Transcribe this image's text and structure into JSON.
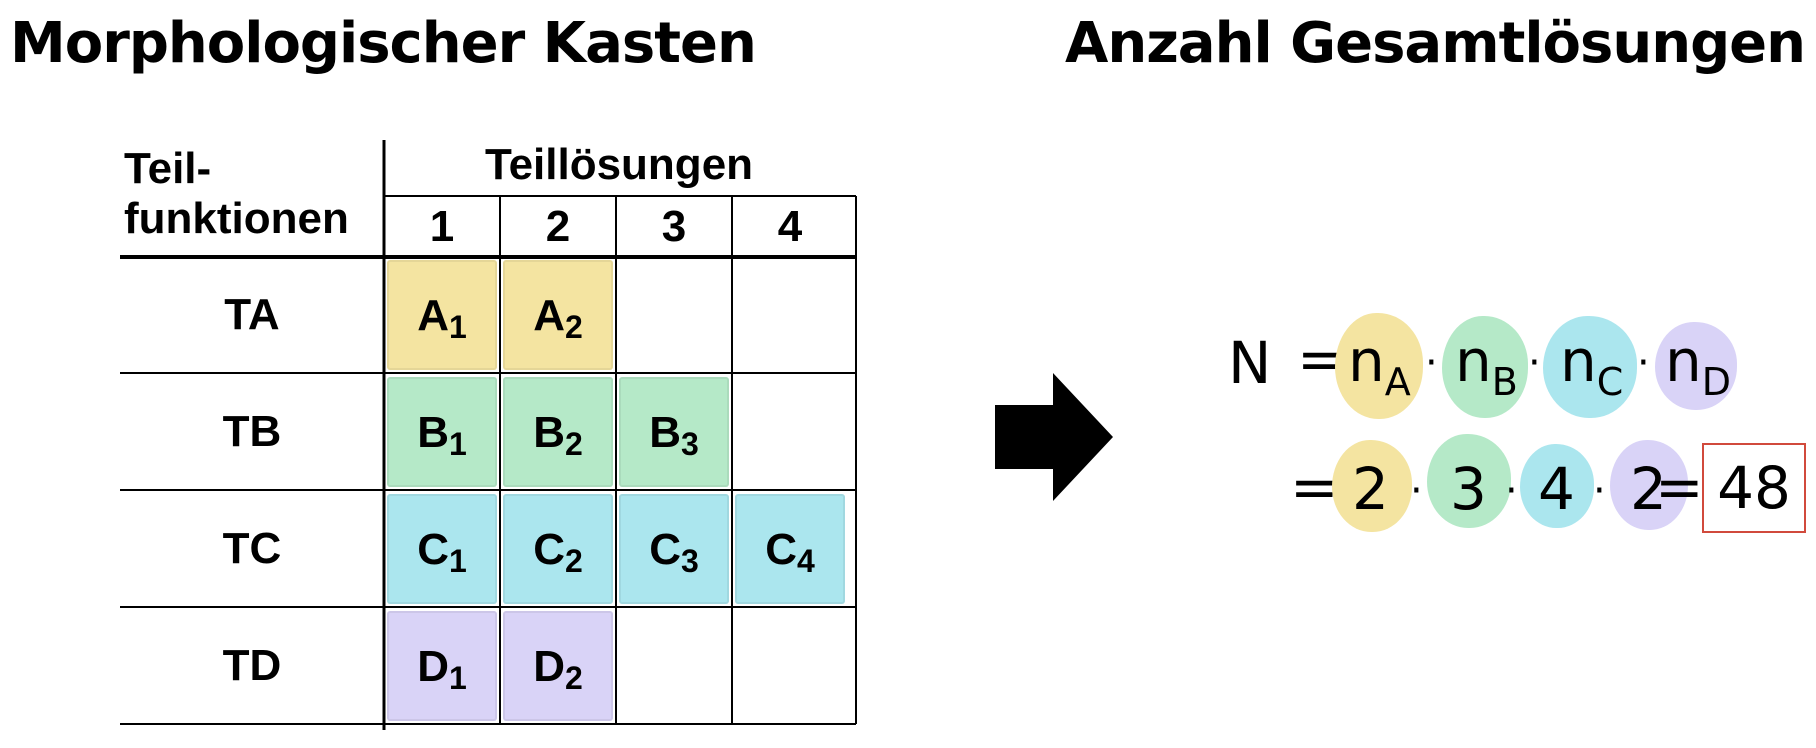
{
  "titles": {
    "left": "Morphologischer Kasten",
    "right": "Anzahl Gesamtlösungen"
  },
  "table": {
    "corner_label_line1": "Teil-",
    "corner_label_line2": "funktionen",
    "solutions_header": "Teillösungen",
    "columns": [
      "1",
      "2",
      "3",
      "4"
    ],
    "rows": [
      {
        "label": "TA",
        "letter": "A",
        "color": "#f4e4a1",
        "cells": [
          "1",
          "2"
        ]
      },
      {
        "label": "TB",
        "letter": "B",
        "color": "#b5e9c8",
        "cells": [
          "1",
          "2",
          "3"
        ]
      },
      {
        "label": "TC",
        "letter": "C",
        "color": "#abe6ee",
        "cells": [
          "1",
          "2",
          "3",
          "4"
        ]
      },
      {
        "label": "TD",
        "letter": "D",
        "color": "#d9d3f7",
        "cells": [
          "1",
          "2"
        ]
      }
    ]
  },
  "formula": {
    "lhs": "N",
    "eq": "=",
    "factors": [
      {
        "base": "n",
        "sub": "A",
        "value": "2",
        "color": "#f4e4a1"
      },
      {
        "base": "n",
        "sub": "B",
        "value": "3",
        "color": "#b5e9c8"
      },
      {
        "base": "n",
        "sub": "C",
        "value": "4",
        "color": "#abe6ee"
      },
      {
        "base": "n",
        "sub": "D",
        "value": "2",
        "color": "#d9d3f7"
      }
    ],
    "dot": "·",
    "result": "48",
    "result_border_color": "#d14a3c"
  }
}
